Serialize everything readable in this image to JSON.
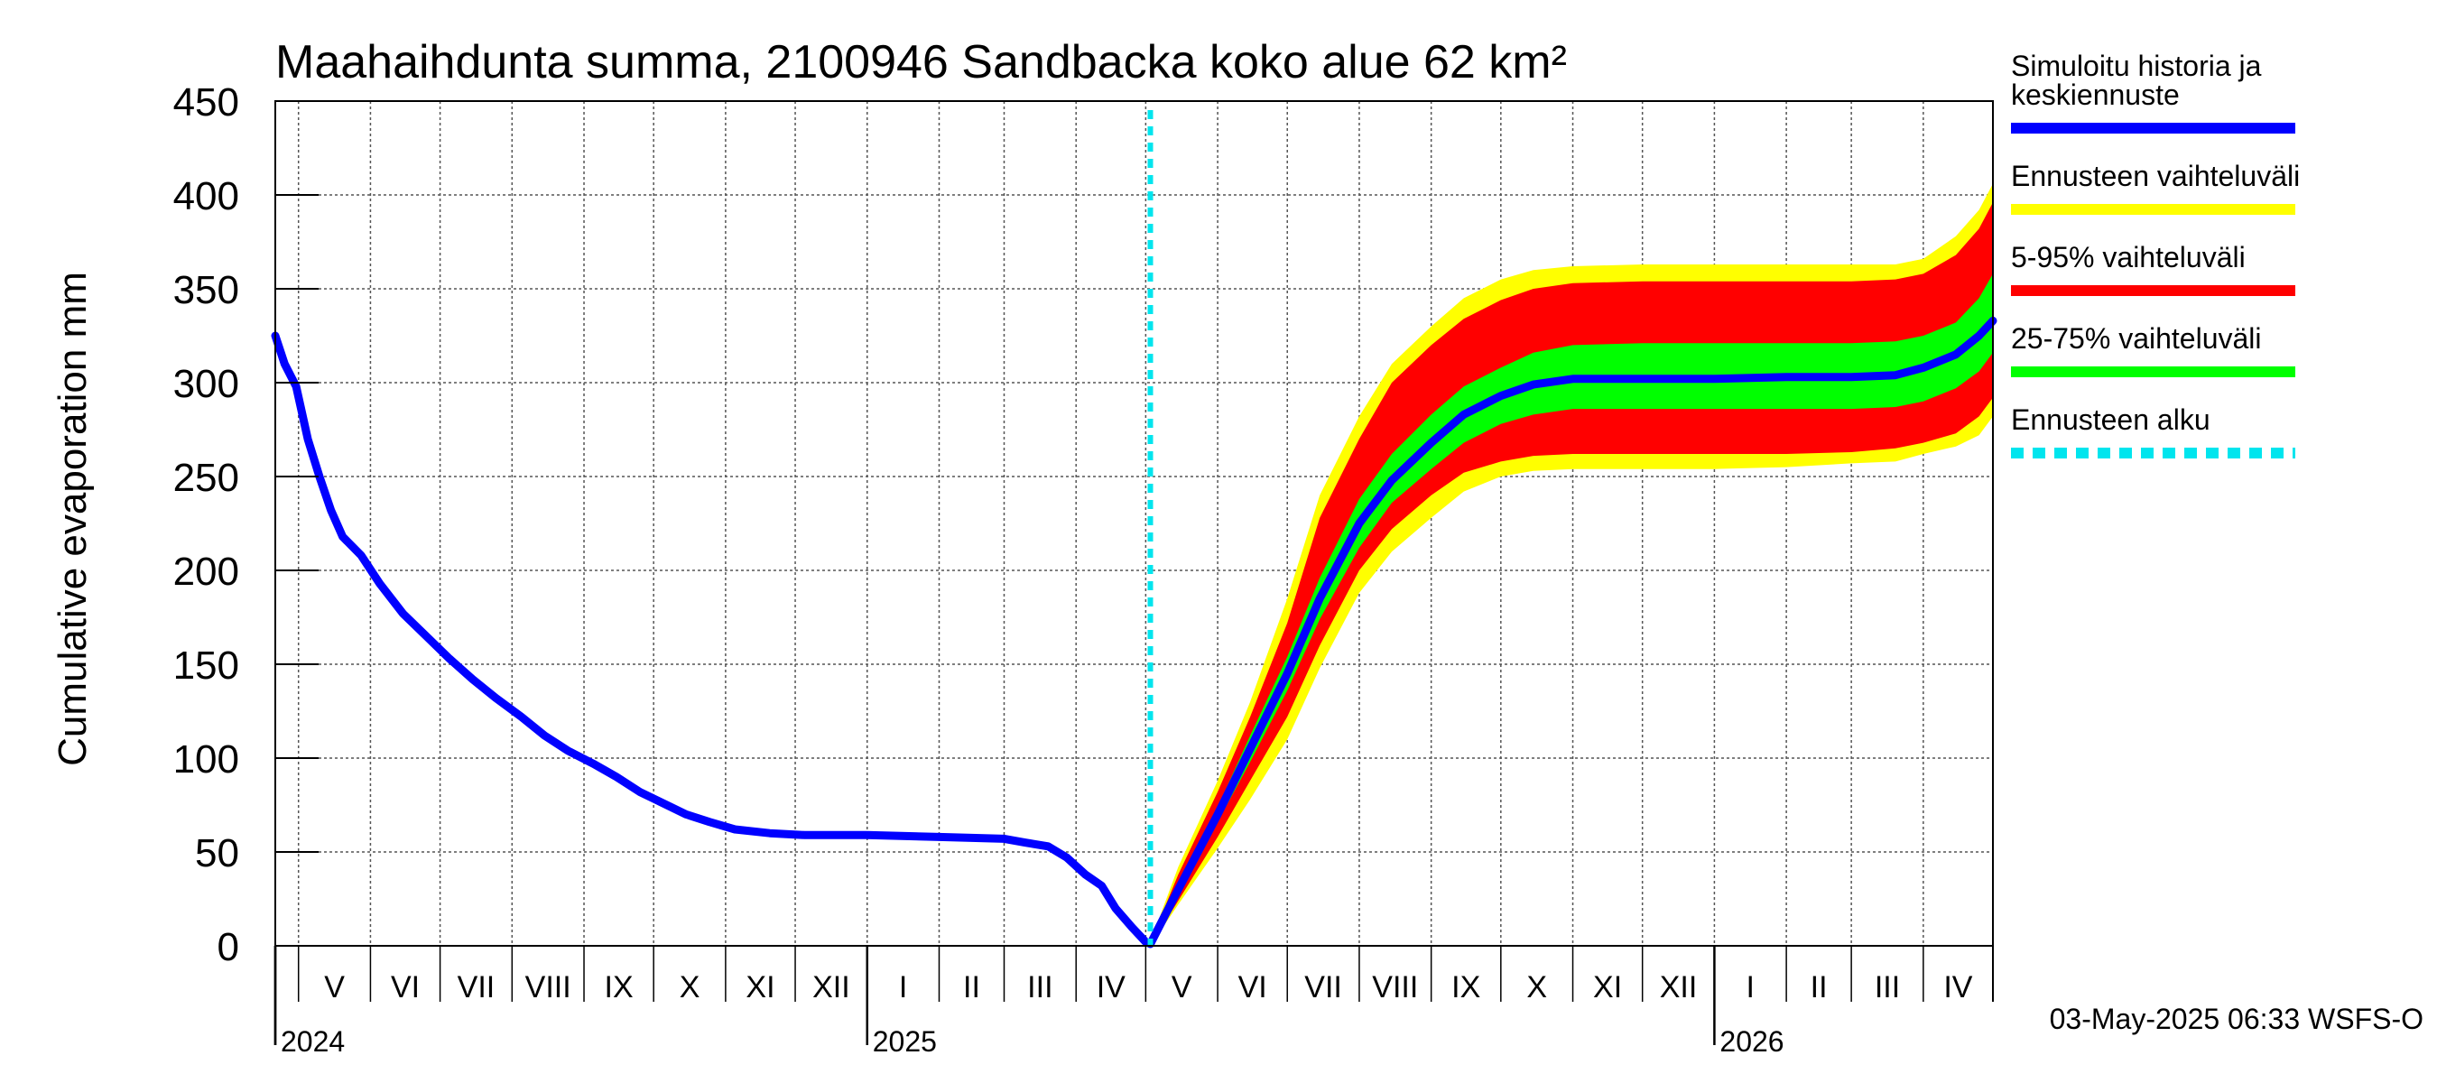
{
  "chart_data": {
    "type": "area",
    "title": "Maahaihdunta summa, 2100946 Sandbacka koko alue 62 km²",
    "ylabel": "Cumulative evaporation   mm",
    "ylim": [
      0,
      450
    ],
    "y_ticks": [
      0,
      50,
      100,
      150,
      200,
      250,
      300,
      350,
      400,
      450
    ],
    "x_range": [
      "2024-04-21",
      "2026-05-01"
    ],
    "grid": true,
    "legend_position": "right",
    "forecast_start": "2025-05-03",
    "month_ticks": [
      {
        "label": "V",
        "start": "2024-05-01",
        "end": "2024-06-01"
      },
      {
        "label": "VI",
        "start": "2024-06-01",
        "end": "2024-07-01"
      },
      {
        "label": "VII",
        "start": "2024-07-01",
        "end": "2024-08-01"
      },
      {
        "label": "VIII",
        "start": "2024-08-01",
        "end": "2024-09-01"
      },
      {
        "label": "IX",
        "start": "2024-09-01",
        "end": "2024-10-01"
      },
      {
        "label": "X",
        "start": "2024-10-01",
        "end": "2024-11-01"
      },
      {
        "label": "XI",
        "start": "2024-11-01",
        "end": "2024-12-01"
      },
      {
        "label": "XII",
        "start": "2024-12-01",
        "end": "2025-01-01"
      },
      {
        "label": "I",
        "start": "2025-01-01",
        "end": "2025-02-01"
      },
      {
        "label": "II",
        "start": "2025-02-01",
        "end": "2025-03-01"
      },
      {
        "label": "III",
        "start": "2025-03-01",
        "end": "2025-04-01"
      },
      {
        "label": "IV",
        "start": "2025-04-01",
        "end": "2025-05-01"
      },
      {
        "label": "V",
        "start": "2025-05-01",
        "end": "2025-06-01"
      },
      {
        "label": "VI",
        "start": "2025-06-01",
        "end": "2025-07-01"
      },
      {
        "label": "VII",
        "start": "2025-07-01",
        "end": "2025-08-01"
      },
      {
        "label": "VIII",
        "start": "2025-08-01",
        "end": "2025-09-01"
      },
      {
        "label": "IX",
        "start": "2025-09-01",
        "end": "2025-10-01"
      },
      {
        "label": "X",
        "start": "2025-10-01",
        "end": "2025-11-01"
      },
      {
        "label": "XI",
        "start": "2025-11-01",
        "end": "2025-12-01"
      },
      {
        "label": "XII",
        "start": "2025-12-01",
        "end": "2026-01-01"
      },
      {
        "label": "I",
        "start": "2026-01-01",
        "end": "2026-02-01"
      },
      {
        "label": "II",
        "start": "2026-02-01",
        "end": "2026-03-01"
      },
      {
        "label": "III",
        "start": "2026-03-01",
        "end": "2026-04-01"
      },
      {
        "label": "IV",
        "start": "2026-04-01",
        "end": "2026-05-01"
      }
    ],
    "year_labels": [
      {
        "label": "2024",
        "date": "2024-04-21"
      },
      {
        "label": "2025",
        "date": "2025-01-01"
      },
      {
        "label": "2026",
        "date": "2026-01-01"
      }
    ],
    "history": {
      "name": "Simuloitu historia ja keskiennuste",
      "color": "#0000ff",
      "points": [
        [
          "2024-04-21",
          325
        ],
        [
          "2024-04-25",
          310
        ],
        [
          "2024-04-30",
          298
        ],
        [
          "2024-05-05",
          270
        ],
        [
          "2024-05-10",
          250
        ],
        [
          "2024-05-15",
          232
        ],
        [
          "2024-05-20",
          218
        ],
        [
          "2024-05-28",
          208
        ],
        [
          "2024-06-05",
          193
        ],
        [
          "2024-06-15",
          177
        ],
        [
          "2024-06-25",
          165
        ],
        [
          "2024-07-05",
          153
        ],
        [
          "2024-07-15",
          142
        ],
        [
          "2024-07-25",
          132
        ],
        [
          "2024-08-05",
          122
        ],
        [
          "2024-08-15",
          112
        ],
        [
          "2024-08-25",
          104
        ],
        [
          "2024-09-05",
          97
        ],
        [
          "2024-09-15",
          90
        ],
        [
          "2024-09-25",
          82
        ],
        [
          "2024-10-05",
          76
        ],
        [
          "2024-10-15",
          70
        ],
        [
          "2024-10-25",
          66
        ],
        [
          "2024-11-05",
          62
        ],
        [
          "2024-11-20",
          60
        ],
        [
          "2024-12-05",
          59
        ],
        [
          "2025-01-01",
          59
        ],
        [
          "2025-02-01",
          58
        ],
        [
          "2025-03-01",
          57
        ],
        [
          "2025-03-10",
          55
        ],
        [
          "2025-03-20",
          53
        ],
        [
          "2025-03-28",
          47
        ],
        [
          "2025-04-05",
          38
        ],
        [
          "2025-04-12",
          32
        ],
        [
          "2025-04-18",
          20
        ],
        [
          "2025-04-25",
          10
        ],
        [
          "2025-05-01",
          2
        ],
        [
          "2025-05-03",
          1
        ]
      ]
    },
    "forecast_median": {
      "name": "Simuloitu historia ja keskiennuste",
      "color": "#0000ff",
      "points": [
        [
          "2025-05-03",
          1
        ],
        [
          "2025-05-15",
          30
        ],
        [
          "2025-06-01",
          70
        ],
        [
          "2025-06-15",
          105
        ],
        [
          "2025-07-01",
          145
        ],
        [
          "2025-07-15",
          185
        ],
        [
          "2025-08-01",
          225
        ],
        [
          "2025-08-15",
          248
        ],
        [
          "2025-09-01",
          268
        ],
        [
          "2025-09-15",
          283
        ],
        [
          "2025-10-01",
          293
        ],
        [
          "2025-10-15",
          299
        ],
        [
          "2025-11-01",
          302
        ],
        [
          "2025-12-01",
          302
        ],
        [
          "2026-01-01",
          302
        ],
        [
          "2026-02-01",
          303
        ],
        [
          "2026-03-01",
          303
        ],
        [
          "2026-03-20",
          304
        ],
        [
          "2026-04-01",
          308
        ],
        [
          "2026-04-15",
          315
        ],
        [
          "2026-04-25",
          325
        ],
        [
          "2026-05-01",
          333
        ]
      ]
    },
    "bands": [
      {
        "name": "Ennusteen vaihteluväli",
        "color": "#ffff00",
        "x": [
          "2025-05-03",
          "2025-05-15",
          "2025-06-01",
          "2025-06-15",
          "2025-07-01",
          "2025-07-15",
          "2025-08-01",
          "2025-08-15",
          "2025-09-01",
          "2025-09-15",
          "2025-10-01",
          "2025-10-15",
          "2025-11-01",
          "2025-12-01",
          "2026-01-01",
          "2026-02-01",
          "2026-03-01",
          "2026-03-20",
          "2026-04-01",
          "2026-04-15",
          "2026-04-25",
          "2026-05-01"
        ],
        "low": [
          0,
          22,
          52,
          78,
          110,
          148,
          188,
          210,
          228,
          242,
          250,
          253,
          254,
          254,
          254,
          255,
          257,
          258,
          262,
          266,
          272,
          282
        ],
        "high": [
          2,
          42,
          88,
          130,
          185,
          240,
          282,
          310,
          330,
          345,
          355,
          360,
          362,
          363,
          363,
          363,
          363,
          363,
          366,
          378,
          392,
          406
        ]
      },
      {
        "name": "5-95% vaihteluväli",
        "color": "#ff0000",
        "x": [
          "2025-05-03",
          "2025-05-15",
          "2025-06-01",
          "2025-06-15",
          "2025-07-01",
          "2025-07-15",
          "2025-08-01",
          "2025-08-15",
          "2025-09-01",
          "2025-09-15",
          "2025-10-01",
          "2025-10-15",
          "2025-11-01",
          "2025-12-01",
          "2026-01-01",
          "2026-02-01",
          "2026-03-01",
          "2026-03-20",
          "2026-04-01",
          "2026-04-15",
          "2026-04-25",
          "2026-05-01"
        ],
        "low": [
          0,
          24,
          58,
          88,
          122,
          160,
          200,
          222,
          240,
          252,
          258,
          261,
          262,
          262,
          262,
          262,
          263,
          265,
          268,
          273,
          282,
          292
        ],
        "high": [
          2,
          38,
          82,
          122,
          172,
          228,
          270,
          300,
          320,
          334,
          344,
          350,
          353,
          354,
          354,
          354,
          354,
          355,
          358,
          368,
          382,
          396
        ]
      },
      {
        "name": "25-75% vaihteluväli",
        "color": "#00ff00",
        "x": [
          "2025-05-03",
          "2025-05-15",
          "2025-06-01",
          "2025-06-15",
          "2025-07-01",
          "2025-07-15",
          "2025-08-01",
          "2025-08-15",
          "2025-09-01",
          "2025-09-15",
          "2025-10-01",
          "2025-10-15",
          "2025-11-01",
          "2025-12-01",
          "2026-01-01",
          "2026-02-01",
          "2026-03-01",
          "2026-03-20",
          "2026-04-01",
          "2026-04-15",
          "2026-04-25",
          "2026-05-01"
        ],
        "low": [
          1,
          28,
          66,
          98,
          136,
          174,
          212,
          236,
          254,
          268,
          278,
          283,
          286,
          286,
          286,
          286,
          286,
          287,
          290,
          297,
          306,
          316
        ],
        "high": [
          1,
          32,
          74,
          112,
          154,
          196,
          238,
          262,
          283,
          298,
          308,
          316,
          320,
          321,
          321,
          321,
          321,
          322,
          325,
          332,
          345,
          358
        ]
      }
    ],
    "legend": [
      {
        "label_lines": [
          "Simuloitu historia ja",
          "keskiennuste"
        ],
        "color": "#0000ff",
        "style": "solid"
      },
      {
        "label_lines": [
          "Ennusteen vaihteluväli"
        ],
        "color": "#ffff00",
        "style": "solid"
      },
      {
        "label_lines": [
          "5-95% vaihteluväli"
        ],
        "color": "#ff0000",
        "style": "solid"
      },
      {
        "label_lines": [
          "25-75% vaihteluväli"
        ],
        "color": "#00ff00",
        "style": "solid"
      },
      {
        "label_lines": [
          "Ennusteen alku"
        ],
        "color": "#00e5ee",
        "style": "dashed"
      }
    ],
    "footer": "03-May-2025 06:33 WSFS-O"
  }
}
